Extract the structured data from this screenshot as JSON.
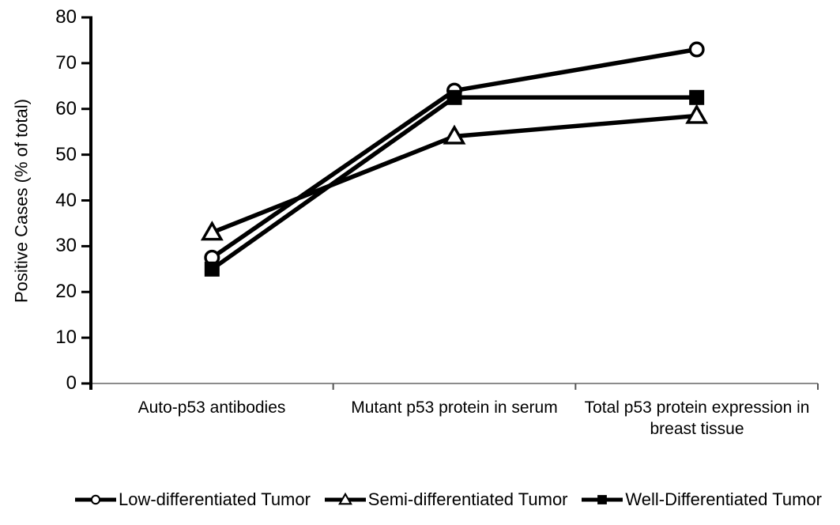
{
  "chart_data": {
    "type": "line",
    "title": "",
    "categories": [
      "Auto-p53 antibodies",
      "Mutant p53 protein in serum",
      "Total p53 protein expression in breast tissue"
    ],
    "series": [
      {
        "name": "Low-differentiated Tumor",
        "marker": "circle",
        "marker_style": "open",
        "values": [
          27.5,
          64,
          73
        ]
      },
      {
        "name": "Semi-differentiated Tumor",
        "marker": "triangle",
        "marker_style": "open",
        "values": [
          33,
          54,
          58.5
        ]
      },
      {
        "name": "Well-Differentiated Tumor",
        "marker": "square",
        "marker_style": "filled",
        "values": [
          25,
          62.5,
          62.5
        ]
      }
    ],
    "xlabel": "",
    "ylabel": "Positive Cases (% of total)",
    "ylim": [
      0,
      80
    ],
    "yticks": [
      0,
      10,
      20,
      30,
      40,
      50,
      60,
      70,
      80
    ],
    "grid": false,
    "legend_position": "bottom",
    "colors": {
      "line": "#000000",
      "text": "#000000",
      "y_axis": "#000000",
      "x_axis_line": "#8c8c8c",
      "background": "#ffffff"
    }
  }
}
